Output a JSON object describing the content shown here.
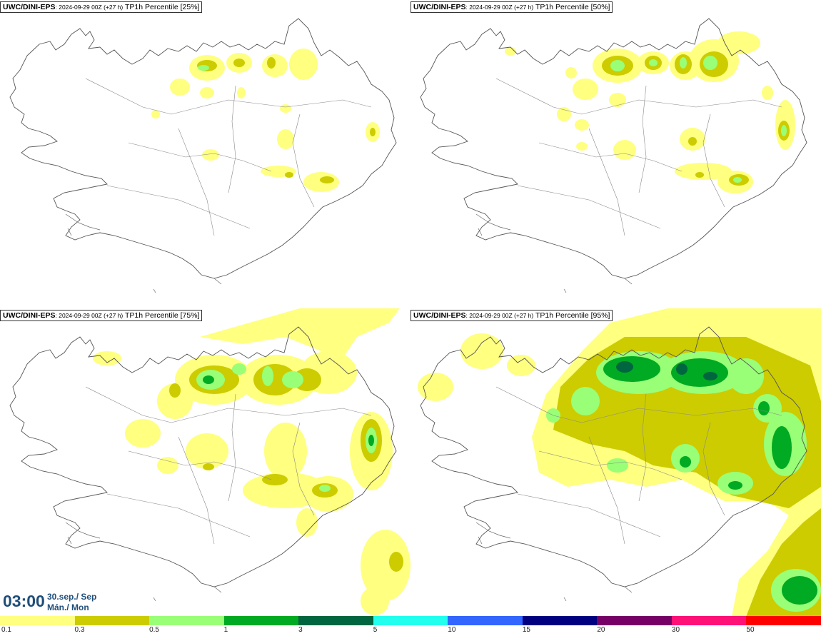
{
  "panels": [
    {
      "model": "UWC/DINI-EPS",
      "run": ": 2024-09-29 00Z (+27 h)",
      "field": "TP1h Percentile [25%]"
    },
    {
      "model": "UWC/DINI-EPS",
      "run": ": 2024-09-29 00Z (+27 h)",
      "field": "TP1h Percentile [50%]"
    },
    {
      "model": "UWC/DINI-EPS",
      "run": ": 2024-09-29 00Z (+27 h)",
      "field": "TP1h Percentile [75%]"
    },
    {
      "model": "UWC/DINI-EPS",
      "run": ": 2024-09-29 00Z (+27 h)",
      "field": "TP1h Percentile [95%]"
    }
  ],
  "valid_time": {
    "time": "03:00",
    "date_line1": "30.sep./ Sep",
    "date_line2": "Mán./ Mon"
  },
  "legend": {
    "colors": [
      "#ffff80",
      "#cccc00",
      "#99ff77",
      "#00aa22",
      "#006640",
      "#22ffee",
      "#3366ff",
      "#000080",
      "#770066",
      "#ff1177",
      "#ff0000"
    ],
    "labels": [
      "0.1",
      "0.3",
      "0.5",
      "1",
      "3",
      "5",
      "10",
      "15",
      "20",
      "30",
      "50"
    ]
  }
}
